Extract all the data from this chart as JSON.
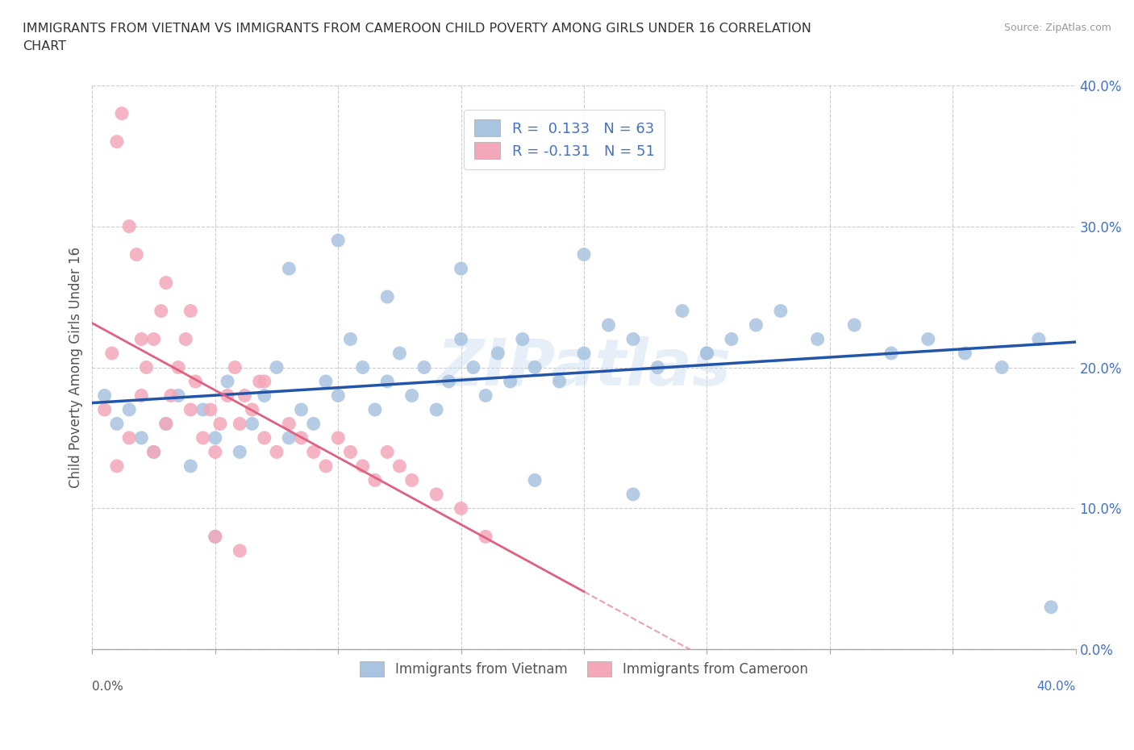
{
  "title": "IMMIGRANTS FROM VIETNAM VS IMMIGRANTS FROM CAMEROON CHILD POVERTY AMONG GIRLS UNDER 16 CORRELATION\nCHART",
  "source": "Source: ZipAtlas.com",
  "ylabel": "Child Poverty Among Girls Under 16",
  "xlim": [
    0.0,
    0.4
  ],
  "ylim": [
    0.0,
    0.4
  ],
  "xticks": [
    0.0,
    0.05,
    0.1,
    0.15,
    0.2,
    0.25,
    0.3,
    0.35,
    0.4
  ],
  "yticks": [
    0.0,
    0.1,
    0.2,
    0.3,
    0.4
  ],
  "ytick_labels": [
    "0.0%",
    "10.0%",
    "20.0%",
    "30.0%",
    "40.0%"
  ],
  "vietnam_color": "#a8c4e0",
  "cameroon_color": "#f4a7b9",
  "vietnam_line_color": "#2255aa",
  "cameroon_line_color": "#e06080",
  "vietnam_R": 0.133,
  "vietnam_N": 63,
  "cameroon_R": -0.131,
  "cameroon_N": 51,
  "watermark": "ZIPatlas",
  "vietnam_x": [
    0.005,
    0.01,
    0.015,
    0.02,
    0.025,
    0.03,
    0.035,
    0.04,
    0.045,
    0.05,
    0.055,
    0.06,
    0.065,
    0.07,
    0.075,
    0.08,
    0.085,
    0.09,
    0.095,
    0.1,
    0.105,
    0.11,
    0.115,
    0.12,
    0.125,
    0.13,
    0.135,
    0.14,
    0.145,
    0.15,
    0.155,
    0.16,
    0.165,
    0.17,
    0.175,
    0.18,
    0.19,
    0.2,
    0.21,
    0.22,
    0.23,
    0.24,
    0.25,
    0.26,
    0.27,
    0.28,
    0.295,
    0.31,
    0.325,
    0.34,
    0.355,
    0.37,
    0.385,
    0.05,
    0.08,
    0.1,
    0.12,
    0.15,
    0.2,
    0.25,
    0.18,
    0.22,
    0.39
  ],
  "vietnam_y": [
    0.18,
    0.16,
    0.17,
    0.15,
    0.14,
    0.16,
    0.18,
    0.13,
    0.17,
    0.15,
    0.19,
    0.14,
    0.16,
    0.18,
    0.2,
    0.15,
    0.17,
    0.16,
    0.19,
    0.18,
    0.22,
    0.2,
    0.17,
    0.19,
    0.21,
    0.18,
    0.2,
    0.17,
    0.19,
    0.22,
    0.2,
    0.18,
    0.21,
    0.19,
    0.22,
    0.2,
    0.19,
    0.21,
    0.23,
    0.22,
    0.2,
    0.24,
    0.21,
    0.22,
    0.23,
    0.24,
    0.22,
    0.23,
    0.21,
    0.22,
    0.21,
    0.2,
    0.22,
    0.08,
    0.27,
    0.29,
    0.25,
    0.27,
    0.28,
    0.21,
    0.12,
    0.11,
    0.03
  ],
  "cameroon_x": [
    0.005,
    0.008,
    0.01,
    0.012,
    0.015,
    0.018,
    0.02,
    0.022,
    0.025,
    0.028,
    0.03,
    0.032,
    0.035,
    0.038,
    0.04,
    0.042,
    0.045,
    0.048,
    0.05,
    0.052,
    0.055,
    0.058,
    0.06,
    0.062,
    0.065,
    0.068,
    0.07,
    0.075,
    0.08,
    0.085,
    0.09,
    0.095,
    0.1,
    0.105,
    0.11,
    0.115,
    0.12,
    0.125,
    0.13,
    0.14,
    0.15,
    0.16,
    0.01,
    0.015,
    0.02,
    0.025,
    0.03,
    0.04,
    0.05,
    0.06,
    0.07
  ],
  "cameroon_y": [
    0.17,
    0.21,
    0.36,
    0.38,
    0.3,
    0.28,
    0.18,
    0.2,
    0.22,
    0.24,
    0.16,
    0.18,
    0.2,
    0.22,
    0.17,
    0.19,
    0.15,
    0.17,
    0.14,
    0.16,
    0.18,
    0.2,
    0.16,
    0.18,
    0.17,
    0.19,
    0.15,
    0.14,
    0.16,
    0.15,
    0.14,
    0.13,
    0.15,
    0.14,
    0.13,
    0.12,
    0.14,
    0.13,
    0.12,
    0.11,
    0.1,
    0.08,
    0.13,
    0.15,
    0.22,
    0.14,
    0.26,
    0.24,
    0.08,
    0.07,
    0.19
  ],
  "cam_line_solid_end": 0.2,
  "viet_line_start": 0.0,
  "viet_line_end": 0.4,
  "cam_line_full_end": 0.4
}
